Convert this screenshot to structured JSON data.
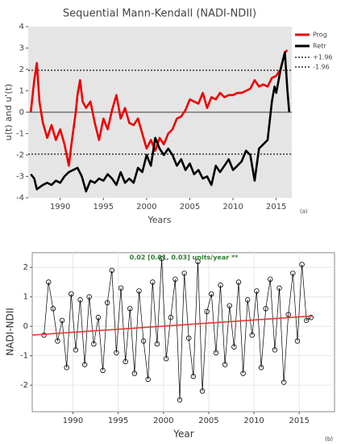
{
  "chart_data": [
    {
      "type": "line",
      "title": "Sequential Mann-Kendall (NADI-NDII)",
      "x_label": "Years",
      "y_label": "u(t) and u'(t)",
      "annotation": "(a)",
      "xlim": [
        1986.3,
        2016.8
      ],
      "xticks": [
        1990,
        1995,
        2000,
        2005,
        2010,
        2015
      ],
      "ylim": [
        -4,
        4
      ],
      "yticks": [
        -4,
        -3,
        -2,
        -1,
        0,
        1,
        2,
        3,
        4
      ],
      "reference_lines": [
        {
          "name": "+1.96",
          "value": 1.96
        },
        {
          "name": "-1.96",
          "value": -1.96
        }
      ],
      "series": [
        {
          "name": "Prog",
          "color": "#ee0000",
          "x": [
            1986.6,
            1987,
            1987.3,
            1987.6,
            1988,
            1988.5,
            1989,
            1989.5,
            1990,
            1990.5,
            1991,
            1991.3,
            1991.8,
            1992,
            1992.3,
            1992.6,
            1993,
            1993.5,
            1994,
            1994.5,
            1995,
            1995.5,
            1996,
            1996.5,
            1997,
            1997.5,
            1998,
            1998.5,
            1999,
            1999.5,
            2000,
            2000.5,
            2001,
            2001.5,
            2002,
            2002.5,
            2003,
            2003.5,
            2004,
            2004.5,
            2005,
            2005.5,
            2006,
            2006.5,
            2007,
            2007.5,
            2008,
            2008.5,
            2009,
            2009.5,
            2010,
            2010.5,
            2011,
            2011.5,
            2012,
            2012.5,
            2013,
            2013.5,
            2014,
            2014.5,
            2015,
            2015.5,
            2016,
            2016.3
          ],
          "values": [
            0,
            1.5,
            2.3,
            0.5,
            -0.5,
            -1.2,
            -0.6,
            -1.3,
            -0.8,
            -1.5,
            -2.5,
            -1.5,
            0,
            0.8,
            1.5,
            0.5,
            0.2,
            0.5,
            -0.5,
            -1.3,
            -0.3,
            -0.8,
            0.1,
            0.8,
            -0.3,
            0.2,
            -0.5,
            -0.6,
            -0.3,
            -1.0,
            -1.7,
            -1.3,
            -1.8,
            -1.2,
            -1.5,
            -1.0,
            -0.8,
            -0.3,
            -0.2,
            0.1,
            0.6,
            0.5,
            0.4,
            0.9,
            0.2,
            0.7,
            0.6,
            0.9,
            0.7,
            0.8,
            0.8,
            0.9,
            0.9,
            1.0,
            1.1,
            1.5,
            1.2,
            1.3,
            1.2,
            1.6,
            1.7,
            2.0,
            2.8,
            2.9
          ]
        },
        {
          "name": "Retr",
          "color": "#000000",
          "x": [
            1986.6,
            1987,
            1987.3,
            1988,
            1988.5,
            1989,
            1989.5,
            1990,
            1990.5,
            1991,
            1991.5,
            1992,
            1992.5,
            1993,
            1993.5,
            1994,
            1994.5,
            1995,
            1995.5,
            1996,
            1996.5,
            1997,
            1997.5,
            1998,
            1998.5,
            1999,
            1999.5,
            2000,
            2000.5,
            2001,
            2001.5,
            2002,
            2002.5,
            2003,
            2003.5,
            2004,
            2004.5,
            2005,
            2005.5,
            2006,
            2006.5,
            2007,
            2007.5,
            2008,
            2008.5,
            2009,
            2009.5,
            2010,
            2010.5,
            2011,
            2011.5,
            2012,
            2012.5,
            2013,
            2013.5,
            2014,
            2014.5,
            2014.8,
            2015,
            2015.5,
            2016,
            2016.3,
            2016.5
          ],
          "values": [
            -2.9,
            -3.1,
            -3.6,
            -3.4,
            -3.3,
            -3.4,
            -3.2,
            -3.3,
            -3.0,
            -2.8,
            -2.7,
            -2.6,
            -3.0,
            -3.7,
            -3.2,
            -3.3,
            -3.1,
            -3.2,
            -2.9,
            -3.1,
            -3.4,
            -2.8,
            -3.3,
            -3.1,
            -3.3,
            -2.6,
            -2.8,
            -2.0,
            -2.5,
            -1.2,
            -1.7,
            -2.0,
            -1.7,
            -2.0,
            -2.5,
            -2.2,
            -2.7,
            -2.4,
            -2.9,
            -2.7,
            -3.1,
            -3.0,
            -3.4,
            -2.5,
            -2.8,
            -2.5,
            -2.2,
            -2.7,
            -2.5,
            -2.3,
            -1.8,
            -2.0,
            -3.2,
            -1.7,
            -1.5,
            -1.3,
            0.5,
            1.2,
            0.9,
            2.0,
            2.8,
            1.0,
            0
          ]
        }
      ]
    },
    {
      "type": "scatter_line",
      "title": "0.02 [0.01, 0.03] units/year **",
      "x_label": "Year",
      "y_label": "NADI-NDII",
      "annotation": "(b)",
      "xlim": [
        1985.5,
        2018.9
      ],
      "xticks": [
        1990,
        1995,
        2000,
        2005,
        2010,
        2015
      ],
      "ylim": [
        -2.9,
        2.5
      ],
      "yticks": [
        -2,
        -1,
        0,
        1,
        2
      ],
      "grid": true,
      "series": [
        {
          "color": "#000000",
          "x": [
            1986.8,
            1987.3,
            1987.8,
            1988.3,
            1988.8,
            1989.3,
            1989.8,
            1990.3,
            1990.8,
            1991.3,
            1991.8,
            1992.3,
            1992.8,
            1993.3,
            1993.8,
            1994.3,
            1994.8,
            1995.3,
            1995.8,
            1996.3,
            1996.8,
            1997.3,
            1997.8,
            1998.3,
            1998.8,
            1999.3,
            1999.8,
            2000.3,
            2000.8,
            2001.3,
            2001.8,
            2002.3,
            2002.8,
            2003.3,
            2003.8,
            2004.3,
            2004.8,
            2005.3,
            2005.8,
            2006.3,
            2006.8,
            2007.3,
            2007.8,
            2008.3,
            2008.8,
            2009.3,
            2009.8,
            2010.3,
            2010.8,
            2011.3,
            2011.8,
            2012.3,
            2012.8,
            2013.3,
            2013.8,
            2014.3,
            2014.8,
            2015.3,
            2015.8,
            2016.3
          ],
          "values": [
            -0.3,
            1.5,
            0.6,
            -0.5,
            0.2,
            -1.4,
            1.1,
            -0.8,
            0.9,
            -1.3,
            1.0,
            -0.6,
            0.3,
            -1.5,
            0.8,
            1.9,
            -0.9,
            1.3,
            -1.2,
            0.6,
            -1.6,
            1.2,
            -0.5,
            -1.8,
            1.5,
            -0.6,
            2.3,
            -1.1,
            0.3,
            1.6,
            -2.5,
            1.8,
            -0.4,
            -1.7,
            2.2,
            -2.2,
            0.5,
            1.1,
            -0.9,
            1.4,
            -1.3,
            0.7,
            -0.7,
            1.5,
            -1.6,
            0.9,
            -0.3,
            1.2,
            -1.4,
            0.6,
            1.6,
            -0.8,
            1.3,
            -1.9,
            0.4,
            1.8,
            -0.5,
            2.1,
            0.2,
            0.3
          ]
        },
        {
          "color": "#e53935",
          "x": [
            1985.5,
            2016.5
          ],
          "values": [
            -0.3,
            0.35
          ]
        }
      ]
    }
  ]
}
